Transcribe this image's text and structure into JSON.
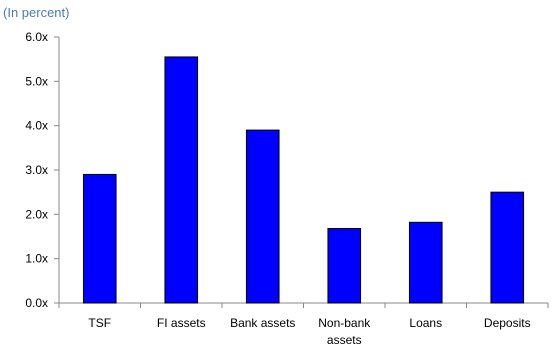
{
  "chart_data": {
    "type": "bar",
    "subtitle": "(In percent)",
    "title": "",
    "xlabel": "",
    "ylabel": "",
    "categories": [
      "TSF",
      "FI assets",
      "Bank assets",
      "Non-bank assets",
      "Loans",
      "Deposits"
    ],
    "category_display_lines": [
      [
        "TSF"
      ],
      [
        "FI assets"
      ],
      [
        "Bank assets"
      ],
      [
        "Non-bank",
        "assets"
      ],
      [
        "Loans"
      ],
      [
        "Deposits"
      ]
    ],
    "values": [
      2.9,
      5.55,
      3.9,
      1.68,
      1.82,
      2.5
    ],
    "ylim": [
      0,
      6
    ],
    "yticks": [
      0,
      1,
      2,
      3,
      4,
      5,
      6
    ],
    "ytick_labels": [
      "0.0x",
      "1.0x",
      "2.0x",
      "3.0x",
      "4.0x",
      "5.0x",
      "6.0x"
    ],
    "bar_color": "#0000FF",
    "bar_edge_color": "#000000",
    "grid": false,
    "legend": "none"
  }
}
